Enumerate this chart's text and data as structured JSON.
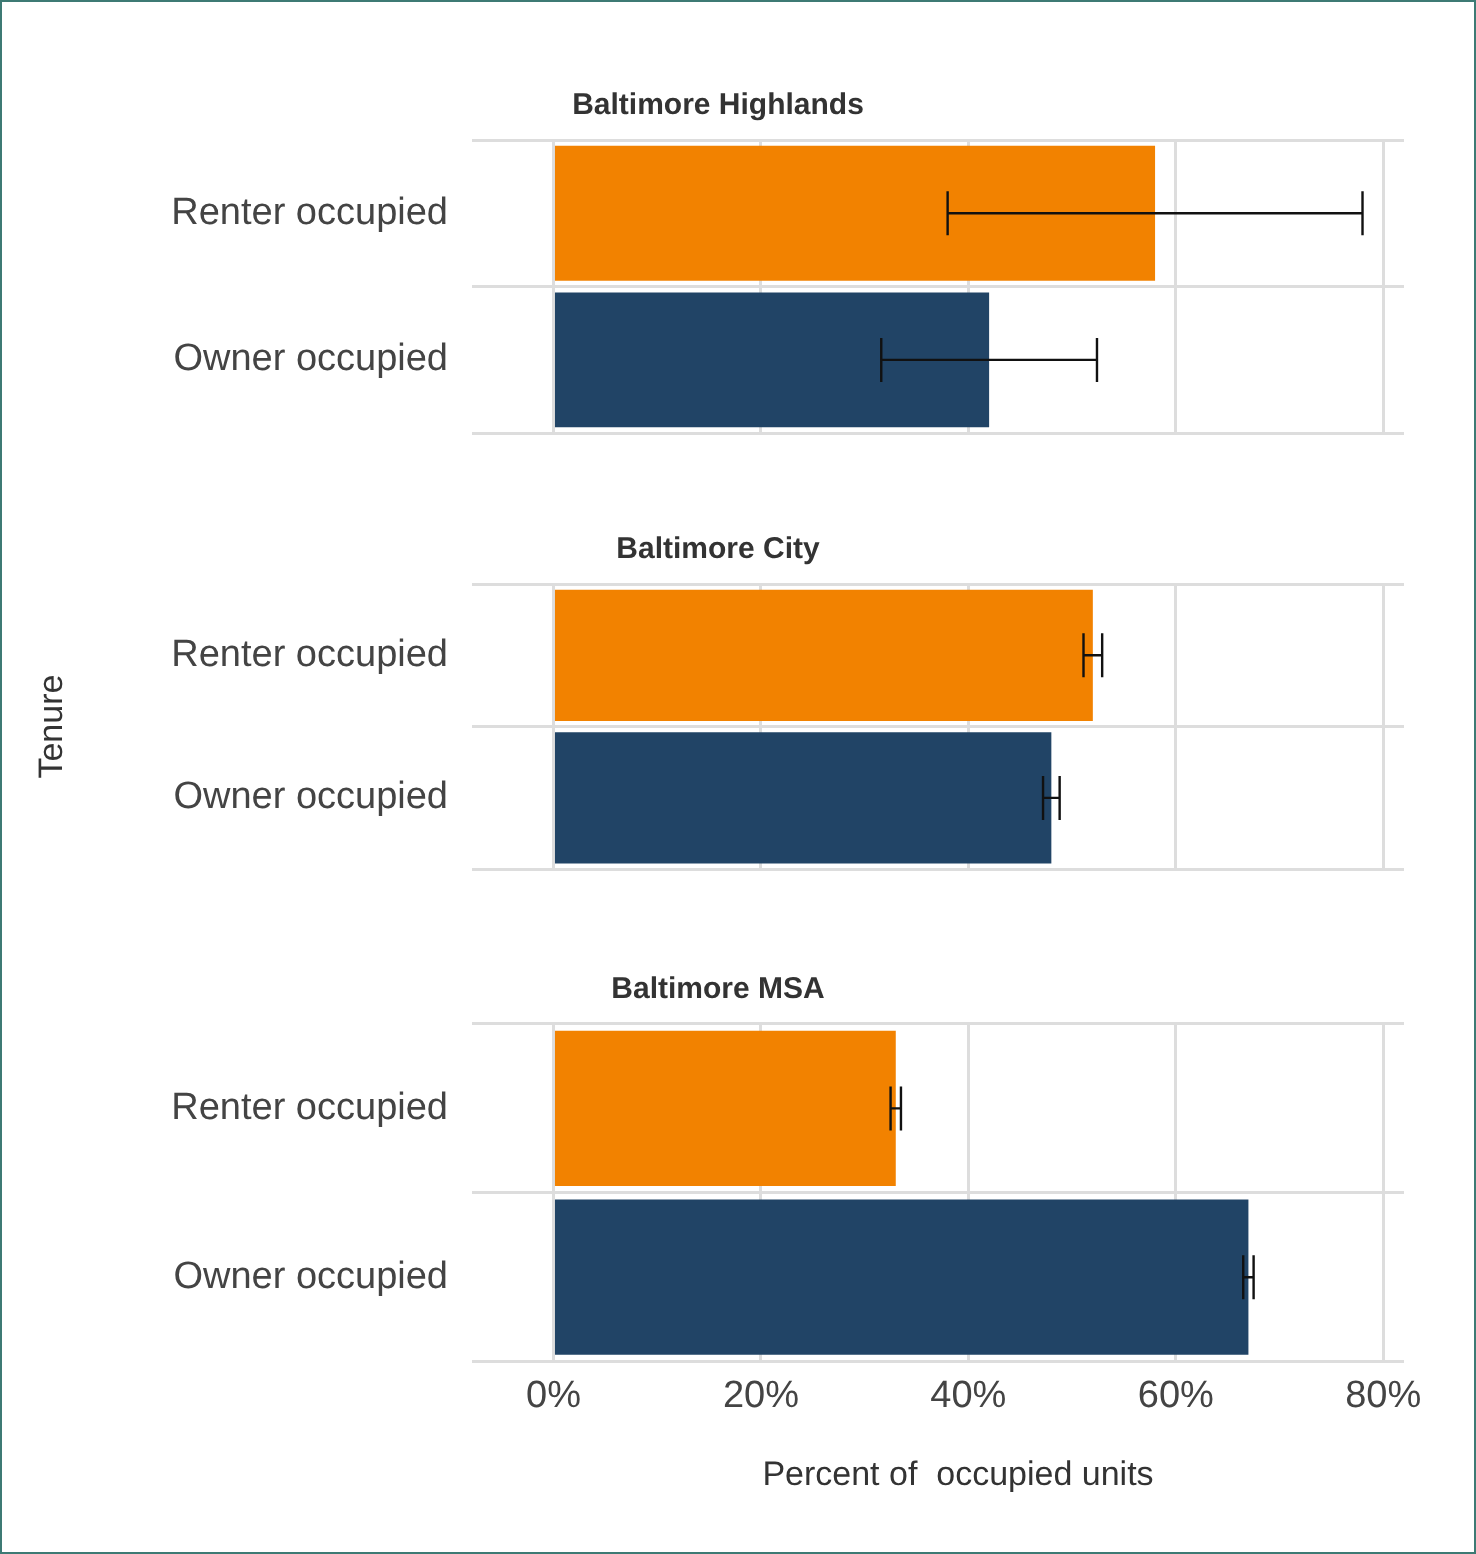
{
  "chart_data": [
    {
      "type": "bar",
      "orientation": "horizontal",
      "title": "Baltimore Highlands",
      "categories": [
        "Renter occupied",
        "Owner occupied"
      ],
      "values": [
        58,
        42
      ],
      "colors": [
        "#f28200",
        "#214466"
      ],
      "errors": [
        [
          38,
          78
        ],
        [
          31.6,
          52.4
        ]
      ],
      "xlim": [
        -4,
        82
      ],
      "xticks": [
        {
          "value": 0,
          "label": null
        },
        {
          "value": 20,
          "label": null
        },
        {
          "value": 40,
          "label": null
        },
        {
          "value": 60,
          "label": null
        },
        {
          "value": 80,
          "label": null
        }
      ],
      "grid": true,
      "tick_labels": "y"
    },
    {
      "type": "bar",
      "orientation": "horizontal",
      "title": "Baltimore City",
      "ylabel": "Tenure",
      "categories": [
        "Renter occupied",
        "Owner occupied"
      ],
      "values": [
        52,
        48
      ],
      "colors": [
        "#f28200",
        "#214466"
      ],
      "errors": [
        [
          51.1,
          52.9
        ],
        [
          47.2,
          48.8
        ]
      ],
      "xlim": [
        -4,
        82
      ],
      "xticks": [
        {
          "value": 0,
          "label": null
        },
        {
          "value": 20,
          "label": null
        },
        {
          "value": 40,
          "label": null
        },
        {
          "value": 60,
          "label": null
        },
        {
          "value": 80,
          "label": null
        }
      ],
      "grid": true,
      "tick_labels": "y"
    },
    {
      "type": "bar",
      "orientation": "horizontal",
      "title": "Baltimore MSA",
      "xlabel": "Percent of  occupied units",
      "categories": [
        "Renter occupied",
        "Owner occupied"
      ],
      "values": [
        33,
        67
      ],
      "colors": [
        "#f28200",
        "#214466"
      ],
      "errors": [
        [
          32.5,
          33.5
        ],
        [
          66.5,
          67.5
        ]
      ],
      "xlim": [
        -4,
        82
      ],
      "xticks": [
        {
          "value": 0,
          "label": "0%"
        },
        {
          "value": 20,
          "label": "20%"
        },
        {
          "value": 40,
          "label": "40%"
        },
        {
          "value": 60,
          "label": "60%"
        },
        {
          "value": 80,
          "label": "80%"
        }
      ],
      "grid": true
    }
  ]
}
